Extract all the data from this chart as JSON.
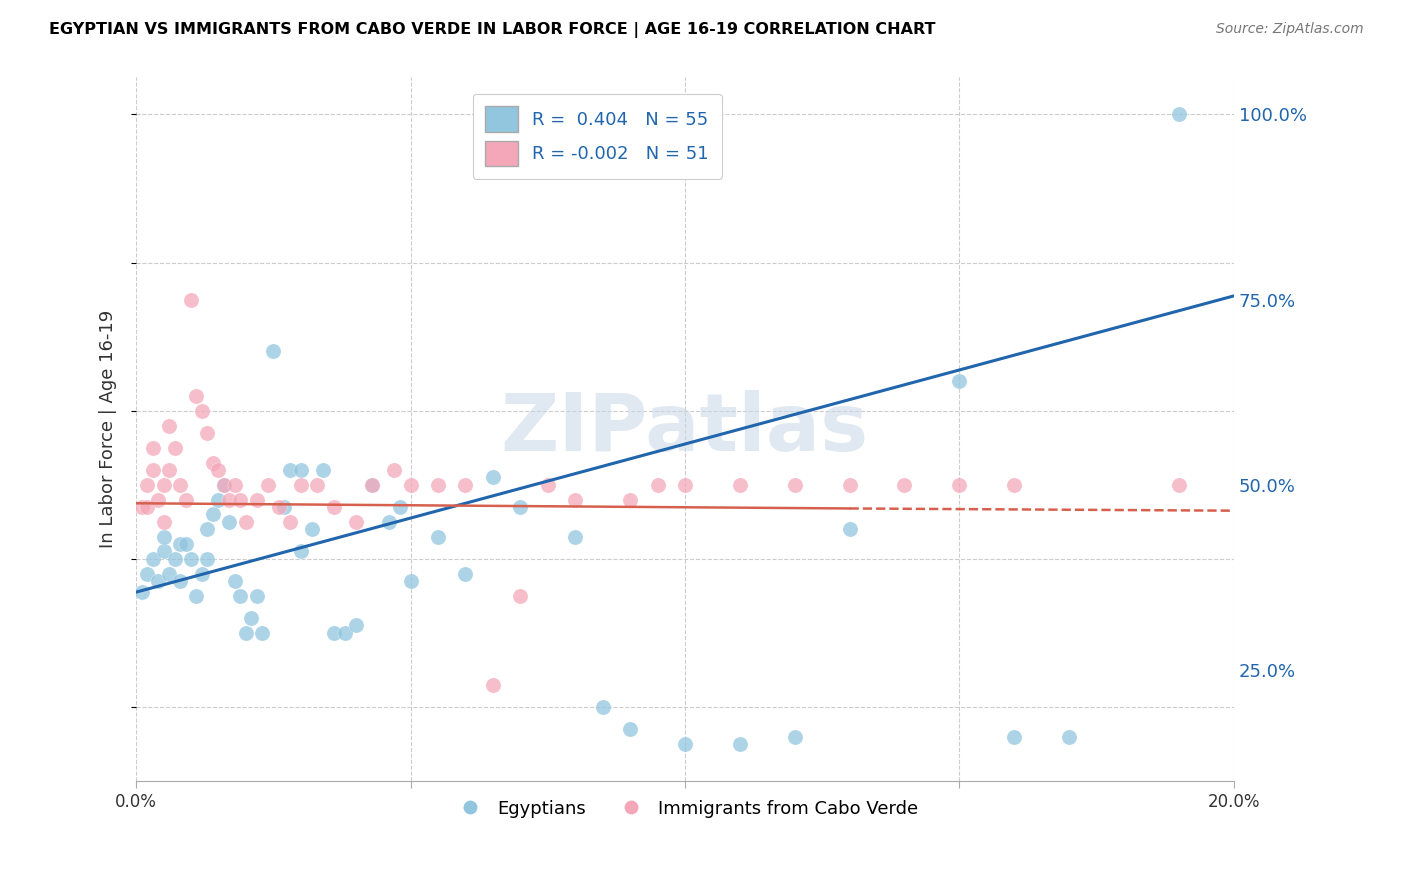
{
  "title": "EGYPTIAN VS IMMIGRANTS FROM CABO VERDE IN LABOR FORCE | AGE 16-19 CORRELATION CHART",
  "source": "Source: ZipAtlas.com",
  "ylabel": "In Labor Force | Age 16-19",
  "ytick_labels": [
    "25.0%",
    "50.0%",
    "75.0%",
    "100.0%"
  ],
  "ytick_values": [
    0.25,
    0.5,
    0.75,
    1.0
  ],
  "xmin": 0.0,
  "xmax": 0.2,
  "ymin": 0.1,
  "ymax": 1.05,
  "blue_R": 0.404,
  "blue_N": 55,
  "pink_R": -0.002,
  "pink_N": 51,
  "blue_color": "#92c5de",
  "pink_color": "#f4a7b9",
  "blue_line_color": "#2166ac",
  "pink_line_color": "#d6604d",
  "legend_label_blue": "Egyptians",
  "legend_label_pink": "Immigrants from Cabo Verde",
  "watermark": "ZIPatlas",
  "blue_line_x0": 0.0,
  "blue_line_y0": 0.355,
  "blue_line_x1": 0.2,
  "blue_line_y1": 0.755,
  "pink_line_x0": 0.0,
  "pink_line_y0": 0.475,
  "pink_line_x1": 0.2,
  "pink_line_y1": 0.465,
  "blue_points_x": [
    0.001,
    0.002,
    0.003,
    0.004,
    0.005,
    0.005,
    0.006,
    0.007,
    0.008,
    0.008,
    0.009,
    0.01,
    0.011,
    0.012,
    0.013,
    0.013,
    0.014,
    0.015,
    0.016,
    0.017,
    0.018,
    0.019,
    0.02,
    0.021,
    0.022,
    0.023,
    0.025,
    0.027,
    0.028,
    0.03,
    0.03,
    0.032,
    0.034,
    0.036,
    0.038,
    0.04,
    0.043,
    0.046,
    0.048,
    0.05,
    0.055,
    0.06,
    0.065,
    0.07,
    0.08,
    0.085,
    0.09,
    0.1,
    0.11,
    0.12,
    0.13,
    0.15,
    0.16,
    0.17,
    0.19
  ],
  "blue_points_y": [
    0.355,
    0.38,
    0.4,
    0.37,
    0.41,
    0.43,
    0.38,
    0.4,
    0.37,
    0.42,
    0.42,
    0.4,
    0.35,
    0.38,
    0.44,
    0.4,
    0.46,
    0.48,
    0.5,
    0.45,
    0.37,
    0.35,
    0.3,
    0.32,
    0.35,
    0.3,
    0.68,
    0.47,
    0.52,
    0.52,
    0.41,
    0.44,
    0.52,
    0.3,
    0.3,
    0.31,
    0.5,
    0.45,
    0.47,
    0.37,
    0.43,
    0.38,
    0.51,
    0.47,
    0.43,
    0.2,
    0.17,
    0.15,
    0.15,
    0.16,
    0.44,
    0.64,
    0.16,
    0.16,
    1.0
  ],
  "pink_points_x": [
    0.001,
    0.002,
    0.002,
    0.003,
    0.003,
    0.004,
    0.005,
    0.005,
    0.006,
    0.006,
    0.007,
    0.008,
    0.009,
    0.01,
    0.011,
    0.012,
    0.013,
    0.014,
    0.015,
    0.016,
    0.017,
    0.018,
    0.019,
    0.02,
    0.022,
    0.024,
    0.026,
    0.028,
    0.03,
    0.033,
    0.036,
    0.04,
    0.043,
    0.047,
    0.05,
    0.055,
    0.06,
    0.065,
    0.07,
    0.075,
    0.08,
    0.09,
    0.095,
    0.1,
    0.11,
    0.12,
    0.13,
    0.14,
    0.15,
    0.16,
    0.19
  ],
  "pink_points_y": [
    0.47,
    0.5,
    0.47,
    0.52,
    0.55,
    0.48,
    0.5,
    0.45,
    0.58,
    0.52,
    0.55,
    0.5,
    0.48,
    0.75,
    0.62,
    0.6,
    0.57,
    0.53,
    0.52,
    0.5,
    0.48,
    0.5,
    0.48,
    0.45,
    0.48,
    0.5,
    0.47,
    0.45,
    0.5,
    0.5,
    0.47,
    0.45,
    0.5,
    0.52,
    0.5,
    0.5,
    0.5,
    0.23,
    0.35,
    0.5,
    0.48,
    0.48,
    0.5,
    0.5,
    0.5,
    0.5,
    0.5,
    0.5,
    0.5,
    0.5,
    0.5
  ]
}
